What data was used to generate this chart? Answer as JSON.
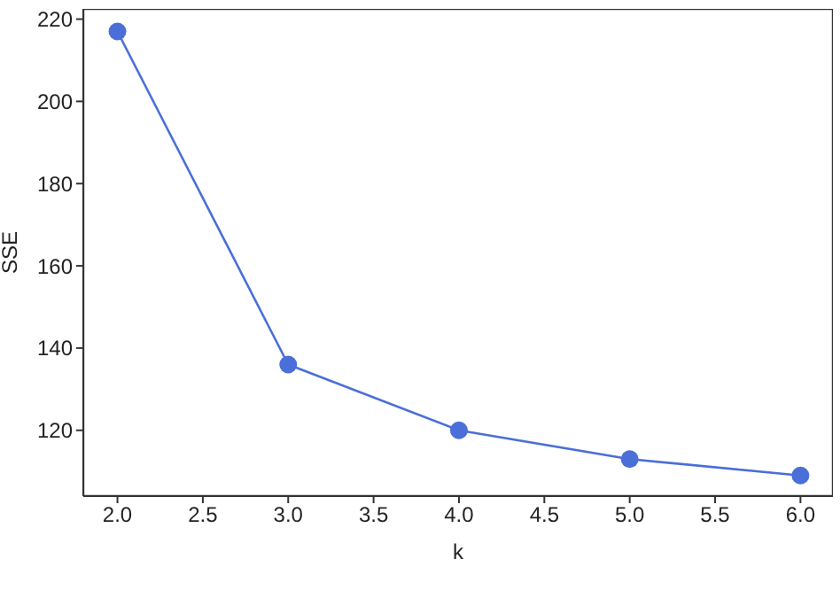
{
  "chart_data": {
    "type": "line",
    "xlabel": "k",
    "ylabel": "SSE",
    "x": [
      2,
      3,
      4,
      5,
      6
    ],
    "series": [
      {
        "color": "#4a6fd8",
        "values": [
          217,
          136,
          120,
          113,
          109
        ]
      }
    ],
    "xlim": [
      1.8,
      6.19
    ],
    "ylim": [
      104,
      222.5
    ],
    "xticks": [
      {
        "value": 2,
        "label": "2.0"
      },
      {
        "value": 2.5,
        "label": "2.5"
      },
      {
        "value": 3,
        "label": "3.0"
      },
      {
        "value": 3.5,
        "label": "3.5"
      },
      {
        "value": 4,
        "label": "4.0"
      },
      {
        "value": 4.5,
        "label": "4.5"
      },
      {
        "value": 5,
        "label": "5.0"
      },
      {
        "value": 5.5,
        "label": "5.5"
      },
      {
        "value": 6,
        "label": "6.0"
      }
    ],
    "yticks": [
      120,
      140,
      160,
      180,
      200,
      220
    ],
    "grid": false,
    "legend": false,
    "marker": "circle",
    "line_style": "solid"
  }
}
